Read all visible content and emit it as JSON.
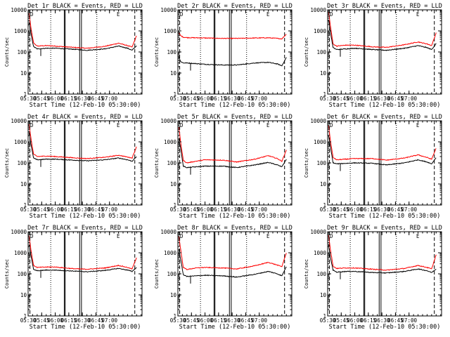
{
  "chart_data": {
    "type": "line",
    "layout": "3x3 grid of panels",
    "shared": {
      "xlabel": "Start Time (12-Feb-10 05:30:00)",
      "ylabel": "Counts/sec",
      "yscale": "log",
      "ylim": [
        1,
        10000
      ],
      "ytick_labels": [
        "1",
        "10",
        "100",
        "1000",
        "10000"
      ],
      "xlim": [
        "05:30",
        "07:36"
      ],
      "xtick_labels": [
        "05:30",
        "05:45",
        "06:00",
        "06:15",
        "06:30",
        "06:45",
        "07:00"
      ],
      "series_colors": {
        "events": "#000000",
        "lld": "#ff0000"
      },
      "dashed_vlines": [
        "05:32",
        "07:28"
      ],
      "dotted_vlines": [
        "05:55",
        "06:46"
      ],
      "solid_vlines": [
        "06:10",
        "06:11",
        "06:27",
        "06:29"
      ],
      "flag_labels": [
        "D",
        "E"
      ]
    },
    "panels": [
      {
        "title": "Det 1r BLACK = Events, RED = LLD",
        "x": [
          "05:31",
          "05:33",
          "05:36",
          "05:40",
          "05:50",
          "06:00",
          "06:20",
          "06:35",
          "06:55",
          "07:10",
          "07:20",
          "07:25",
          "07:30"
        ],
        "events": [
          2500,
          800,
          180,
          140,
          150,
          150,
          135,
          120,
          140,
          190,
          150,
          120,
          200
        ],
        "lld": [
          7000,
          1500,
          270,
          190,
          200,
          190,
          165,
          150,
          185,
          260,
          200,
          170,
          600
        ]
      },
      {
        "title": "Det 2r BLACK = Events, RED = LLD",
        "x": [
          "05:31",
          "05:33",
          "05:36",
          "05:40",
          "05:50",
          "06:00",
          "06:20",
          "06:35",
          "06:55",
          "07:10",
          "07:20",
          "07:25",
          "07:30"
        ],
        "events": [
          60,
          35,
          30,
          30,
          28,
          26,
          24,
          24,
          30,
          32,
          27,
          22,
          55
        ],
        "lld": [
          800,
          600,
          500,
          480,
          470,
          460,
          440,
          440,
          460,
          470,
          440,
          420,
          700
        ]
      },
      {
        "title": "Det 3r BLACK = Events, RED = LLD",
        "x": [
          "05:31",
          "05:33",
          "05:36",
          "05:40",
          "05:50",
          "06:00",
          "06:20",
          "06:35",
          "06:55",
          "07:10",
          "07:20",
          "07:25",
          "07:30"
        ],
        "events": [
          3500,
          900,
          160,
          130,
          140,
          150,
          130,
          120,
          150,
          200,
          160,
          130,
          250
        ],
        "lld": [
          8000,
          1800,
          240,
          190,
          210,
          210,
          175,
          165,
          220,
          300,
          240,
          200,
          800
        ]
      },
      {
        "title": "Det 4r BLACK = Events, RED = LLD",
        "x": [
          "05:31",
          "05:33",
          "05:36",
          "05:40",
          "05:50",
          "06:00",
          "06:20",
          "06:35",
          "06:55",
          "07:10",
          "07:20",
          "07:25",
          "07:30"
        ],
        "events": [
          2800,
          800,
          170,
          140,
          150,
          150,
          135,
          125,
          140,
          170,
          140,
          120,
          200
        ],
        "lld": [
          7000,
          1600,
          260,
          200,
          210,
          200,
          175,
          160,
          185,
          230,
          190,
          170,
          600
        ]
      },
      {
        "title": "Det 5r BLACK = Events, RED = LLD",
        "x": [
          "05:31",
          "05:33",
          "05:36",
          "05:40",
          "05:50",
          "06:00",
          "06:20",
          "06:35",
          "06:55",
          "07:10",
          "07:20",
          "07:25",
          "07:30"
        ],
        "events": [
          1500,
          500,
          70,
          60,
          65,
          70,
          70,
          60,
          80,
          105,
          80,
          65,
          150
        ],
        "lld": [
          5000,
          1000,
          130,
          100,
          120,
          140,
          135,
          110,
          150,
          220,
          160,
          120,
          400
        ]
      },
      {
        "title": "Det 6r BLACK = Events, RED = LLD",
        "x": [
          "05:31",
          "05:33",
          "05:36",
          "05:40",
          "05:50",
          "06:00",
          "06:20",
          "06:35",
          "06:55",
          "07:10",
          "07:20",
          "07:25",
          "07:30"
        ],
        "events": [
          2000,
          600,
          100,
          90,
          95,
          100,
          95,
          80,
          100,
          140,
          110,
          90,
          180
        ],
        "lld": [
          6000,
          1200,
          180,
          140,
          150,
          160,
          160,
          135,
          170,
          240,
          180,
          150,
          500
        ]
      },
      {
        "title": "Det 7r BLACK = Events, RED = LLD",
        "x": [
          "05:31",
          "05:33",
          "05:36",
          "05:40",
          "05:50",
          "06:00",
          "06:20",
          "06:35",
          "06:55",
          "07:10",
          "07:20",
          "07:25",
          "07:30"
        ],
        "events": [
          2500,
          800,
          160,
          140,
          150,
          150,
          135,
          125,
          145,
          180,
          150,
          130,
          200
        ],
        "lld": [
          6500,
          1500,
          250,
          200,
          210,
          210,
          175,
          165,
          190,
          250,
          200,
          170,
          600
        ]
      },
      {
        "title": "Det 8r BLACK = Events, RED = LLD",
        "x": [
          "05:31",
          "05:33",
          "05:36",
          "05:40",
          "05:50",
          "06:00",
          "06:20",
          "06:35",
          "06:55",
          "07:10",
          "07:20",
          "07:25",
          "07:30"
        ],
        "events": [
          1500,
          500,
          90,
          75,
          80,
          85,
          80,
          70,
          95,
          130,
          100,
          80,
          220
        ],
        "lld": [
          6000,
          1500,
          200,
          160,
          190,
          200,
          190,
          170,
          240,
          350,
          260,
          220,
          1000
        ]
      },
      {
        "title": "Det 9r BLACK = Events, RED = LLD",
        "x": [
          "05:31",
          "05:33",
          "05:36",
          "05:40",
          "05:50",
          "06:00",
          "06:20",
          "06:35",
          "06:55",
          "07:10",
          "07:20",
          "07:25",
          "07:30"
        ],
        "events": [
          2500,
          600,
          150,
          120,
          130,
          130,
          115,
          110,
          130,
          170,
          140,
          115,
          170
        ],
        "lld": [
          7000,
          1500,
          230,
          180,
          190,
          190,
          165,
          150,
          180,
          250,
          200,
          170,
          800
        ]
      }
    ]
  }
}
